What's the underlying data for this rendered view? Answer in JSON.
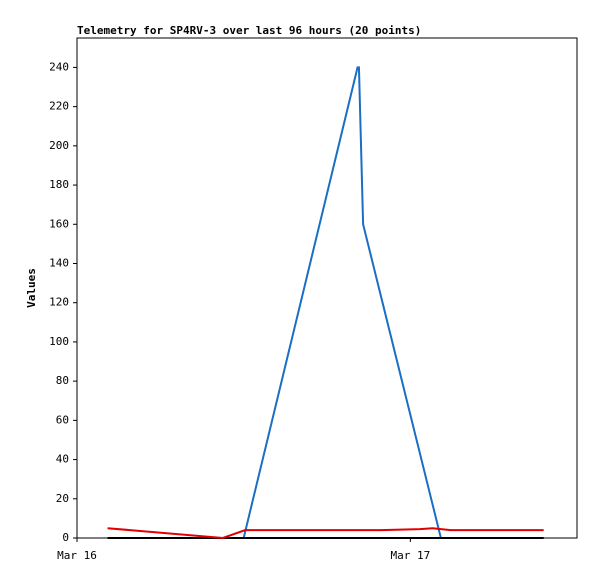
{
  "chart_data": {
    "type": "line",
    "title": "Telemetry for SP4RV-3 over last 96 hours (20 points)",
    "y_label": "Values",
    "xlim": [
      0,
      36
    ],
    "xticks": [
      {
        "value": 0,
        "label": "Mar 16"
      },
      {
        "value": 24,
        "label": "Mar 17"
      }
    ],
    "ylim": [
      0,
      255
    ],
    "yticks": [
      0,
      20,
      40,
      60,
      80,
      100,
      120,
      140,
      160,
      180,
      200,
      220,
      240
    ],
    "series": [
      {
        "color": "#1a6fc4",
        "x": [
          2.2,
          12,
          20.2,
          20.3,
          20.6,
          26.2,
          33.6
        ],
        "values": [
          0,
          0,
          240,
          240,
          160,
          0,
          0
        ]
      },
      {
        "color": "#000000",
        "x": [
          2.2,
          33.6
        ],
        "values": [
          0,
          0
        ]
      },
      {
        "color": "#e00000",
        "x": [
          2.2,
          10.5,
          12.1,
          21.8,
          24.7,
          25.6,
          26.9,
          33.6
        ],
        "values": [
          5,
          0,
          4,
          4,
          4.5,
          5,
          4,
          4
        ]
      }
    ]
  }
}
